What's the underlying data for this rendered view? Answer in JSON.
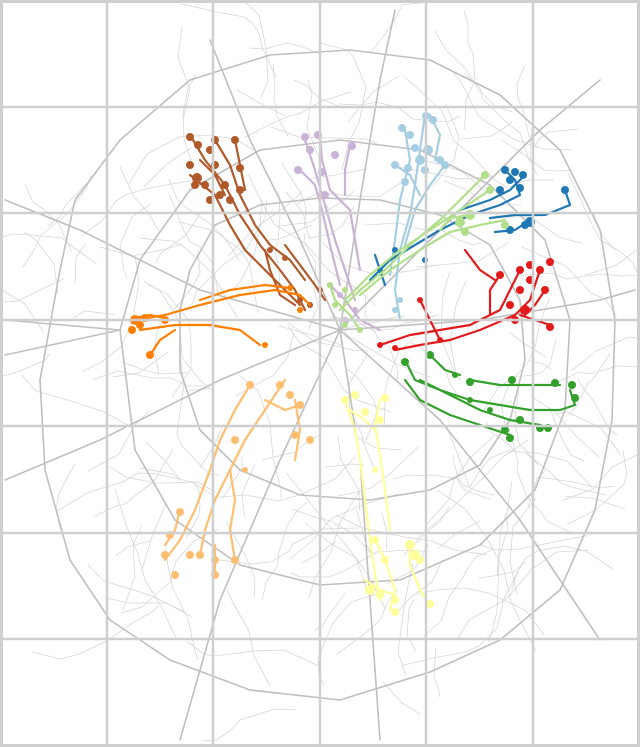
{
  "map": {
    "grid": {
      "columns": 6,
      "rows": 7
    },
    "colors": {
      "background": "#ffffff",
      "grid": "#cfcfcf",
      "road_major": "#bfbfbf",
      "road_minor": "#d7d7d7"
    },
    "routes": [
      {
        "name": "brown",
        "color": "#b15928"
      },
      {
        "name": "lavender",
        "color": "#cab2d6"
      },
      {
        "name": "light-blue",
        "color": "#a6cee3"
      },
      {
        "name": "dark-blue",
        "color": "#1f78b4"
      },
      {
        "name": "light-green",
        "color": "#b2df8a"
      },
      {
        "name": "red",
        "color": "#e31a1c"
      },
      {
        "name": "orange",
        "color": "#ff7f00"
      },
      {
        "name": "dark-green",
        "color": "#33a02c"
      },
      {
        "name": "light-orange",
        "color": "#fdbf6f"
      },
      {
        "name": "yellow",
        "color": "#ffff99"
      }
    ]
  }
}
